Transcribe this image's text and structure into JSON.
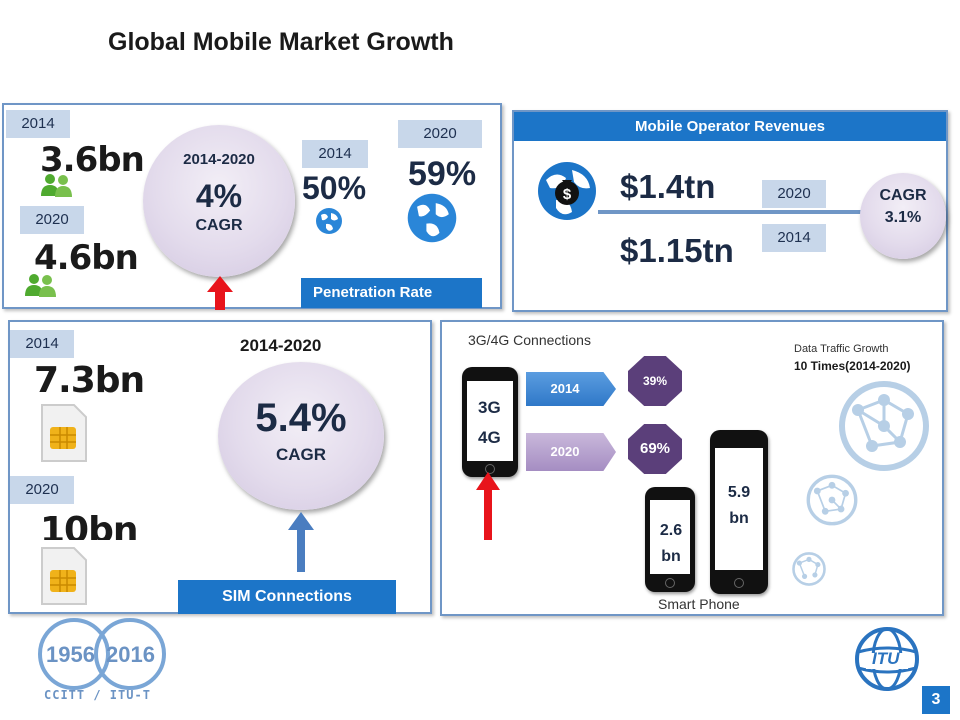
{
  "title": "Global  Mobile Market Growth",
  "subscribers": {
    "year_a": "2014",
    "value_a": "3.6bn",
    "year_b": "2020",
    "value_b": "4.6bn",
    "cagr_period": "2014-2020",
    "cagr_value": "4%",
    "cagr_label": "CAGR"
  },
  "penetration": {
    "year_a": "2014",
    "value_a": "50%",
    "year_b": "2020",
    "value_b": "59%",
    "label": "Penetration Rate"
  },
  "revenues": {
    "header": "Mobile Operator Revenues",
    "value_2020": "$1.4tn",
    "value_2014": "$1.15tn",
    "year_2020": "2020",
    "year_2014": "2014",
    "cagr_label": "CAGR",
    "cagr_value": "3.1%"
  },
  "sim": {
    "year_a": "2014",
    "value_a": "7.3bn",
    "year_b": "2020",
    "value_b": "10bn",
    "cagr_period": "2014-2020",
    "cagr_value": "5.4%",
    "cagr_label": "CAGR",
    "label": "SIM Connections"
  },
  "connections": {
    "header": "3G/4G Connections",
    "phone_label_1": "3G",
    "phone_label_2": "4G",
    "year_a": "2014",
    "pct_a": "39%",
    "year_b": "2020",
    "pct_b": "69%",
    "smart_a": "2.6 bn",
    "smart_b": "5.9 bn",
    "smartphone_label": "Smart Phone",
    "traffic_title": "Data Traffic Growth",
    "traffic_value": "10 Times(2014-2020)"
  },
  "footer": {
    "logo_years_a": "1956",
    "logo_years_b": "2016",
    "logo_text": "CCITT / ITU-T",
    "itu": "ITU",
    "page_number": "3"
  },
  "colors": {
    "accent_blue": "#1c75c8",
    "panel_border": "#6f96c6",
    "arrow_red": "#e8141b",
    "hex_purple": "#5b3f7a"
  }
}
